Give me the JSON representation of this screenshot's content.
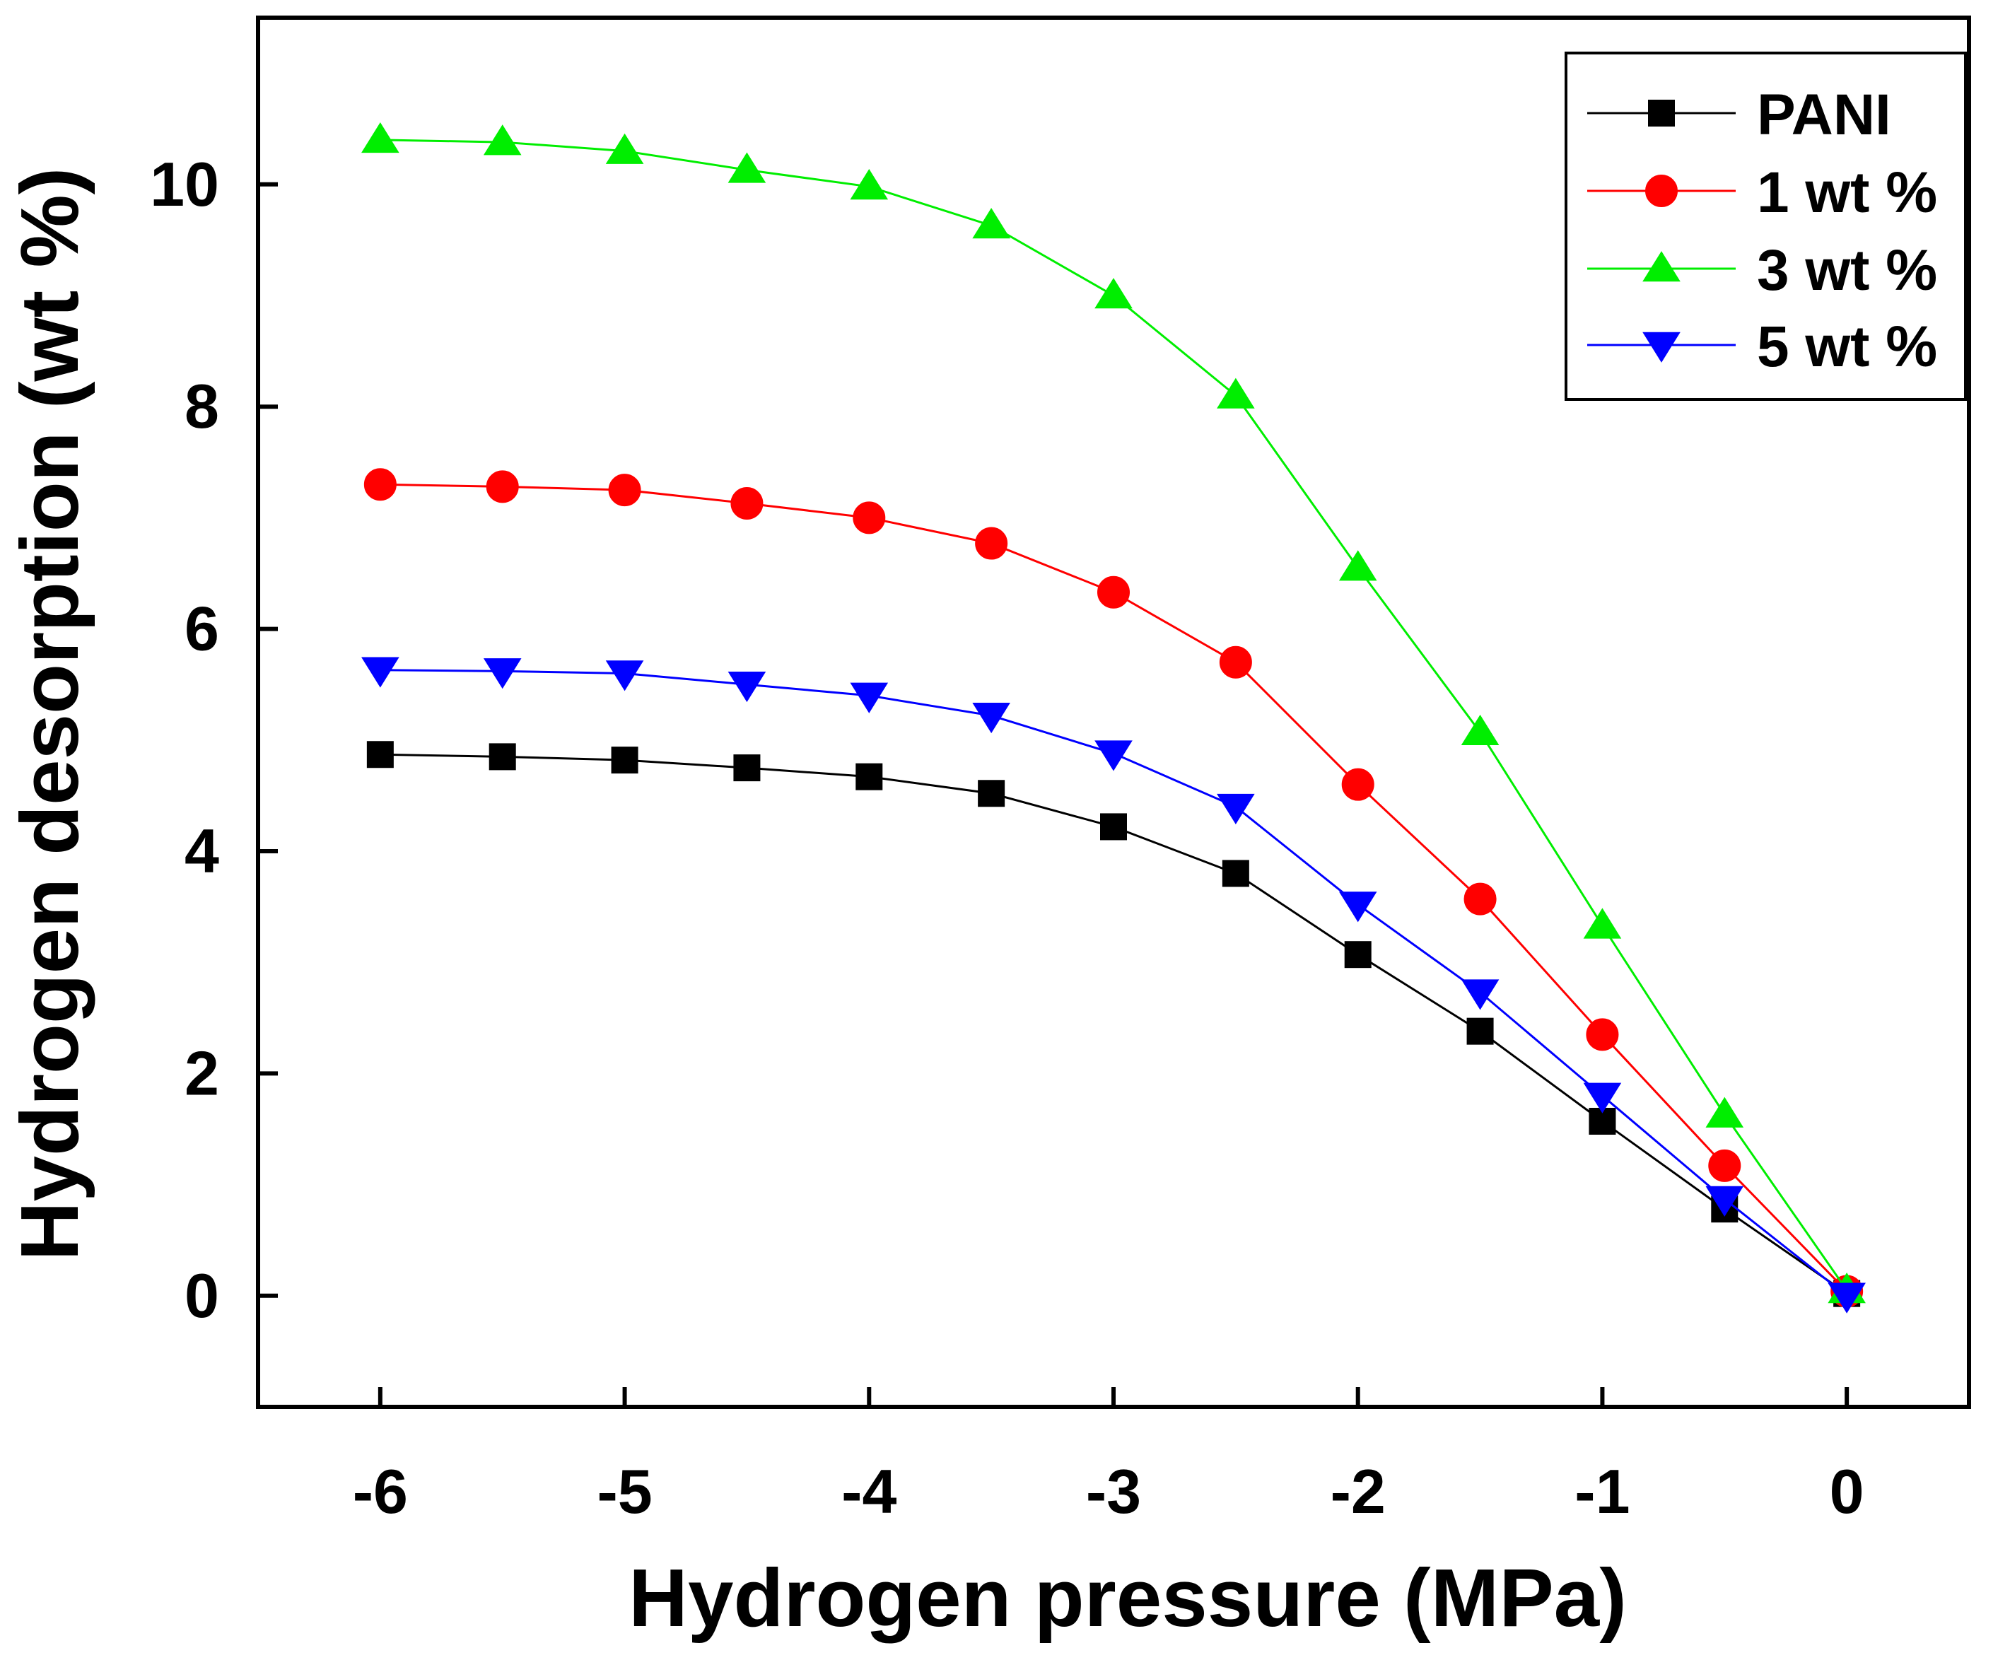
{
  "chart_data": {
    "type": "line",
    "title": "",
    "xlabel": "Hydrogen pressure (MPa)",
    "ylabel": "Hydrogen desorption (wt %)",
    "xlim": [
      -6.5,
      0.5
    ],
    "ylim": [
      -1,
      11.5
    ],
    "xticks": [
      -6,
      -5,
      -4,
      -3,
      -2,
      -1,
      0
    ],
    "xtick_labels": [
      "-6",
      "-5",
      "-4",
      "-3",
      "-2",
      "-1",
      "0"
    ],
    "yticks": [
      0,
      2,
      4,
      6,
      8,
      10
    ],
    "ytick_labels": [
      "0",
      "2",
      "4",
      "6",
      "8",
      "10"
    ],
    "grid": false,
    "legend_position": "top-right",
    "x": [
      -6,
      -5.5,
      -5,
      -4.5,
      -4,
      -3.5,
      -3,
      -2.5,
      -2,
      -1.5,
      -1,
      -0.5,
      0
    ],
    "series": [
      {
        "name": "PANI",
        "color": "#000000",
        "marker": "square",
        "values": [
          4.87,
          4.85,
          4.82,
          4.75,
          4.67,
          4.52,
          4.22,
          3.8,
          3.07,
          2.38,
          1.57,
          0.78,
          0.02
        ]
      },
      {
        "name": "1 wt %",
        "color": "#ff0000",
        "marker": "circle",
        "values": [
          7.3,
          7.28,
          7.25,
          7.13,
          7.0,
          6.77,
          6.33,
          5.7,
          4.6,
          3.57,
          2.35,
          1.17,
          0.04
        ]
      },
      {
        "name": "3 wt %",
        "color": "#00ee00",
        "marker": "triangle-up",
        "values": [
          10.4,
          10.38,
          10.3,
          10.13,
          9.98,
          9.63,
          9.0,
          8.1,
          6.55,
          5.07,
          3.33,
          1.63,
          0.05
        ]
      },
      {
        "name": "5 wt %",
        "color": "#0000ff",
        "marker": "triangle-down",
        "values": [
          5.63,
          5.62,
          5.6,
          5.5,
          5.4,
          5.22,
          4.88,
          4.4,
          3.52,
          2.73,
          1.8,
          0.87,
          0.0
        ]
      }
    ]
  }
}
